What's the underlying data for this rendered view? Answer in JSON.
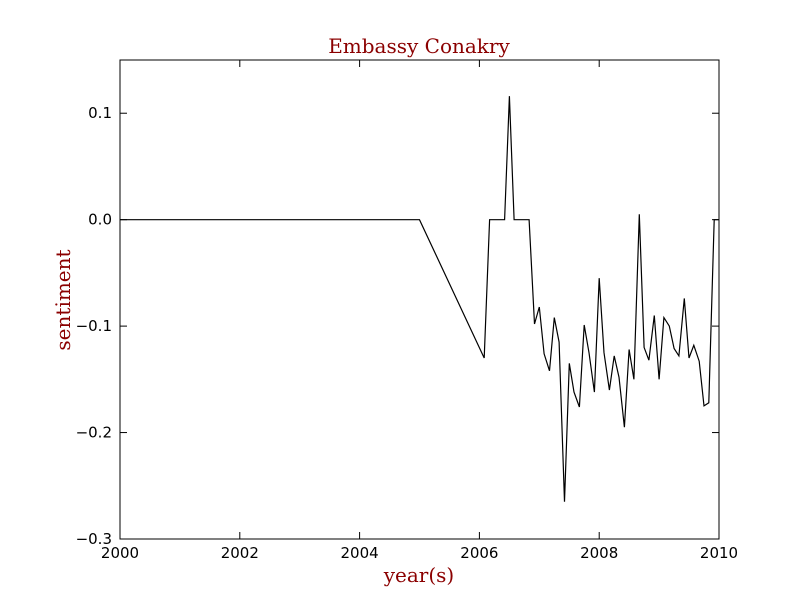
{
  "chart_data": {
    "type": "line",
    "title": "Embassy Conakry",
    "xlabel": "year(s)",
    "ylabel": "sentiment",
    "xlim": [
      2000,
      2010
    ],
    "ylim": [
      -0.3,
      0.15
    ],
    "xticks": [
      {
        "value": 2000,
        "label": "2000"
      },
      {
        "value": 2002,
        "label": "2002"
      },
      {
        "value": 2004,
        "label": "2004"
      },
      {
        "value": 2006,
        "label": "2006"
      },
      {
        "value": 2008,
        "label": "2008"
      },
      {
        "value": 2010,
        "label": "2010"
      }
    ],
    "yticks": [
      {
        "value": 0.1,
        "label": "0.1"
      },
      {
        "value": 0.0,
        "label": "0.0"
      },
      {
        "value": -0.1,
        "label": "−0.1"
      },
      {
        "value": -0.2,
        "label": "−0.2"
      },
      {
        "value": -0.3,
        "label": "−0.3"
      }
    ],
    "grid": false,
    "line_color": "#000000",
    "text_color": "#8b0000",
    "series": [
      {
        "x": [
          2000.0,
          2005.0,
          2006.08,
          2006.17,
          2006.42,
          2006.5,
          2006.58,
          2006.83,
          2006.92,
          2007.0,
          2007.08,
          2007.17,
          2007.25,
          2007.33,
          2007.42,
          2007.5,
          2007.58,
          2007.67,
          2007.75,
          2007.83,
          2007.92,
          2008.0,
          2008.08,
          2008.17,
          2008.25,
          2008.33,
          2008.42,
          2008.5,
          2008.58,
          2008.67,
          2008.75,
          2008.83,
          2008.92,
          2009.0,
          2009.08,
          2009.17,
          2009.25,
          2009.33,
          2009.42,
          2009.5,
          2009.58,
          2009.67,
          2009.75,
          2009.83,
          2009.92,
          2010.0
        ],
        "y": [
          0.0,
          0.0,
          -0.13,
          0.0,
          0.0,
          0.116,
          0.0,
          0.0,
          -0.098,
          -0.082,
          -0.126,
          -0.142,
          -0.092,
          -0.115,
          -0.265,
          -0.135,
          -0.162,
          -0.176,
          -0.099,
          -0.125,
          -0.162,
          -0.055,
          -0.125,
          -0.16,
          -0.128,
          -0.148,
          -0.195,
          -0.122,
          -0.15,
          0.005,
          -0.12,
          -0.132,
          -0.09,
          -0.15,
          -0.092,
          -0.1,
          -0.121,
          -0.128,
          -0.074,
          -0.13,
          -0.118,
          -0.133,
          -0.175,
          -0.172,
          0.0,
          0.0
        ]
      }
    ]
  }
}
